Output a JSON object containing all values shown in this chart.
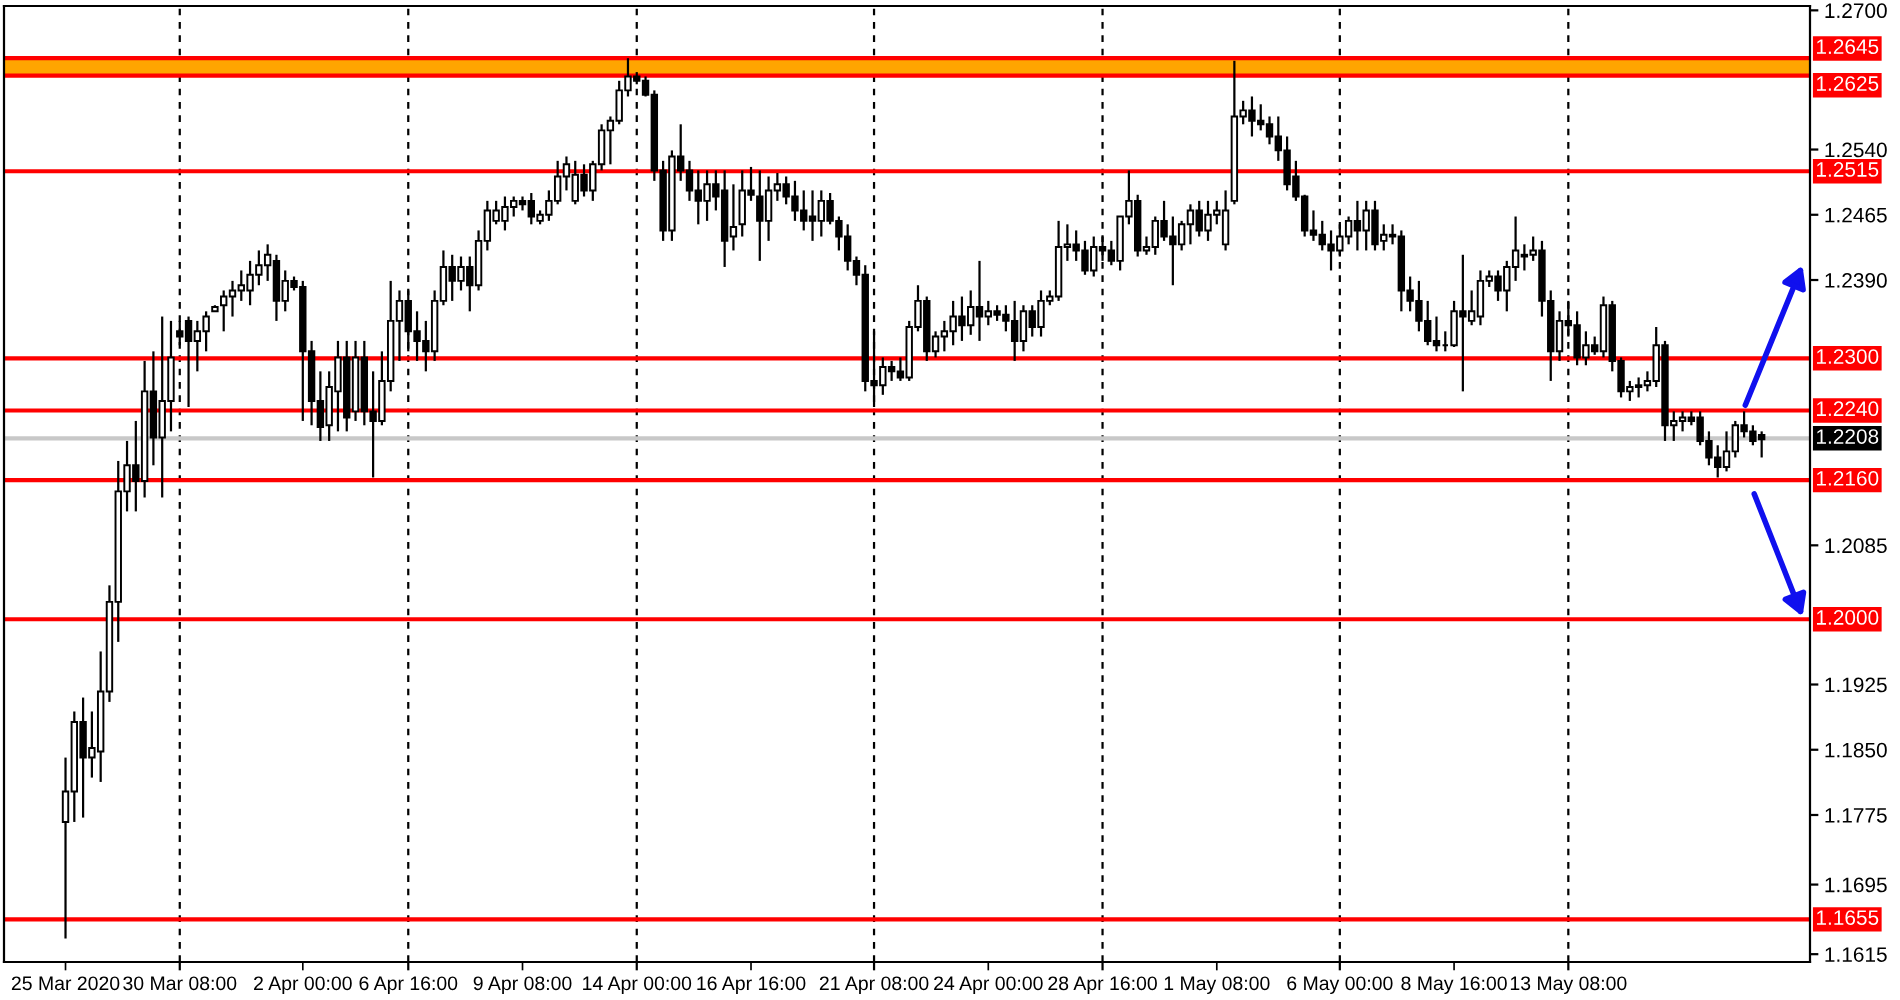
{
  "chart_data": {
    "type": "candlestick",
    "categories": [
      "25 Mar 2020",
      null,
      null,
      null,
      null,
      null,
      null,
      null,
      null,
      null,
      null,
      null,
      null,
      "30 Mar 08:00",
      null,
      null,
      null,
      null,
      null,
      null,
      null,
      null,
      null,
      null,
      null,
      null,
      null,
      "2 Apr 00:00",
      null,
      null,
      null,
      null,
      null,
      null,
      null,
      null,
      null,
      null,
      null,
      "6 Apr 16:00",
      null,
      null,
      null,
      null,
      null,
      null,
      null,
      null,
      null,
      null,
      null,
      null,
      "9 Apr 08:00",
      null,
      null,
      null,
      null,
      null,
      null,
      null,
      null,
      null,
      null,
      null,
      null,
      "14 Apr 00:00",
      null,
      null,
      null,
      null,
      null,
      null,
      null,
      null,
      null,
      null,
      null,
      null,
      "16 Apr 16:00",
      null,
      null,
      null,
      null,
      null,
      null,
      null,
      null,
      null,
      null,
      null,
      null,
      null,
      "21 Apr 08:00",
      null,
      null,
      null,
      null,
      null,
      null,
      null,
      null,
      null,
      null,
      null,
      null,
      "24 Apr 00:00",
      null,
      null,
      null,
      null,
      null,
      null,
      null,
      null,
      null,
      null,
      null,
      null,
      "28 Apr 16:00",
      null,
      null,
      null,
      null,
      null,
      null,
      null,
      null,
      null,
      null,
      null,
      null,
      "1 May 08:00",
      null,
      null,
      null,
      null,
      null,
      null,
      null,
      null,
      null,
      null,
      null,
      null,
      null,
      "6 May 00:00",
      null,
      null,
      null,
      null,
      null,
      null,
      null,
      null,
      null,
      null,
      null,
      null,
      "8 May 16:00",
      null,
      null,
      null,
      null,
      null,
      null,
      null,
      null,
      null,
      null,
      null,
      null,
      "13 May 08:00",
      null,
      null,
      null,
      null,
      null,
      null,
      null,
      null,
      null,
      null,
      null,
      null,
      null,
      null,
      null,
      null,
      null,
      null,
      null,
      null,
      null,
      null
    ],
    "ohlc": [
      [
        1.1767,
        1.1841,
        1.1633,
        1.1802
      ],
      [
        1.1802,
        1.1894,
        1.1767,
        1.1882
      ],
      [
        1.1882,
        1.191,
        1.1772,
        1.1841
      ],
      [
        1.1841,
        1.1894,
        1.1818,
        1.1852
      ],
      [
        1.1848,
        1.1963,
        1.1813,
        1.1917
      ],
      [
        1.1917,
        1.2039,
        1.1905,
        1.202
      ],
      [
        1.202,
        1.2182,
        1.1974,
        1.2147
      ],
      [
        1.2147,
        1.2205,
        1.2124,
        1.2177
      ],
      [
        1.2177,
        1.2228,
        1.2124,
        1.2159
      ],
      [
        1.2159,
        1.2297,
        1.214,
        1.2262
      ],
      [
        1.2262,
        1.2308,
        1.2177,
        1.2209
      ],
      [
        1.2209,
        1.2348,
        1.214,
        1.2251
      ],
      [
        1.2251,
        1.2343,
        1.2216,
        1.2301
      ],
      [
        1.2331,
        1.2343,
        1.2315,
        1.2325
      ],
      [
        1.2343,
        1.2348,
        1.2244,
        1.232
      ],
      [
        1.232,
        1.2343,
        1.2285,
        1.2331
      ],
      [
        1.2331,
        1.2354,
        1.2308,
        1.2348
      ],
      [
        1.2354,
        1.2361,
        1.2354,
        1.2359
      ],
      [
        1.2361,
        1.2378,
        1.2331,
        1.2371
      ],
      [
        1.2371,
        1.2389,
        1.2348,
        1.2378
      ],
      [
        1.2378,
        1.2401,
        1.2366,
        1.2384
      ],
      [
        1.2378,
        1.2412,
        1.2361,
        1.2396
      ],
      [
        1.2396,
        1.2424,
        1.2384,
        1.2407
      ],
      [
        1.2407,
        1.2431,
        1.2389,
        1.2419
      ],
      [
        1.2412,
        1.2419,
        1.2343,
        1.2366
      ],
      [
        1.2366,
        1.2401,
        1.2354,
        1.2389
      ],
      [
        1.2389,
        1.2394,
        1.2378,
        1.2382
      ],
      [
        1.2382,
        1.2389,
        1.2228,
        1.2308
      ],
      [
        1.2308,
        1.232,
        1.2223,
        1.2251
      ],
      [
        1.2251,
        1.2285,
        1.2205,
        1.2221
      ],
      [
        1.2223,
        1.2285,
        1.2205,
        1.2267
      ],
      [
        1.2262,
        1.232,
        1.2216,
        1.2301
      ],
      [
        1.2301,
        1.232,
        1.2216,
        1.2232
      ],
      [
        1.2239,
        1.232,
        1.2228,
        1.2301
      ],
      [
        1.2301,
        1.232,
        1.2223,
        1.2239
      ],
      [
        1.2239,
        1.2285,
        1.2163,
        1.2228
      ],
      [
        1.2228,
        1.2308,
        1.2223,
        1.2274
      ],
      [
        1.2274,
        1.2389,
        1.2262,
        1.2343
      ],
      [
        1.2343,
        1.2378,
        1.2297,
        1.2366
      ],
      [
        1.2366,
        1.2378,
        1.2308,
        1.2331
      ],
      [
        1.2331,
        1.2354,
        1.2297,
        1.232
      ],
      [
        1.232,
        1.2343,
        1.2285,
        1.2308
      ],
      [
        1.2308,
        1.2378,
        1.2297,
        1.2366
      ],
      [
        1.2366,
        1.2424,
        1.2361,
        1.2405
      ],
      [
        1.2405,
        1.2419,
        1.2366,
        1.2389
      ],
      [
        1.2389,
        1.2417,
        1.2378,
        1.2405
      ],
      [
        1.2405,
        1.2417,
        1.2354,
        1.2384
      ],
      [
        1.2384,
        1.2447,
        1.2378,
        1.2435
      ],
      [
        1.2435,
        1.2481,
        1.2424,
        1.247
      ],
      [
        1.2458,
        1.2481,
        1.2454,
        1.247
      ],
      [
        1.2458,
        1.2486,
        1.2447,
        1.2474
      ],
      [
        1.2474,
        1.2486,
        1.2463,
        1.2481
      ],
      [
        1.2481,
        1.2486,
        1.247,
        1.2477
      ],
      [
        1.2481,
        1.249,
        1.2454,
        1.2463
      ],
      [
        1.2458,
        1.247,
        1.2454,
        1.2465
      ],
      [
        1.2465,
        1.2493,
        1.2458,
        1.2481
      ],
      [
        1.2481,
        1.2527,
        1.2477,
        1.2509
      ],
      [
        1.2509,
        1.2532,
        1.2493,
        1.2523
      ],
      [
        1.2481,
        1.2527,
        1.2477,
        1.2511
      ],
      [
        1.2511,
        1.2523,
        1.2486,
        1.2493
      ],
      [
        1.2493,
        1.2527,
        1.2481,
        1.2523
      ],
      [
        1.2523,
        1.2569,
        1.2516,
        1.2562
      ],
      [
        1.2562,
        1.2578,
        1.2523,
        1.2573
      ],
      [
        1.2573,
        1.2619,
        1.2569,
        1.2608
      ],
      [
        1.2608,
        1.2645,
        1.2601,
        1.2624
      ],
      [
        1.2624,
        1.2629,
        1.2615,
        1.2619
      ],
      [
        1.2619,
        1.2624,
        1.2601,
        1.2603
      ],
      [
        1.2603,
        1.2608,
        1.2504,
        1.2516
      ],
      [
        1.2516,
        1.2527,
        1.2435,
        1.2447
      ],
      [
        1.2447,
        1.2539,
        1.2435,
        1.2532
      ],
      [
        1.2532,
        1.2569,
        1.2504,
        1.2516
      ],
      [
        1.2516,
        1.2527,
        1.2481,
        1.2493
      ],
      [
        1.2493,
        1.2516,
        1.2454,
        1.2481
      ],
      [
        1.2481,
        1.2516,
        1.2458,
        1.25
      ],
      [
        1.25,
        1.2516,
        1.247,
        1.2486
      ],
      [
        1.2493,
        1.2516,
        1.2405,
        1.2435
      ],
      [
        1.244,
        1.25,
        1.2424,
        1.2451
      ],
      [
        1.2454,
        1.2516,
        1.244,
        1.2493
      ],
      [
        1.2493,
        1.252,
        1.2481,
        1.2488
      ],
      [
        1.2486,
        1.2516,
        1.2412,
        1.2458
      ],
      [
        1.2458,
        1.2509,
        1.2435,
        1.2493
      ],
      [
        1.2493,
        1.2513,
        1.2481,
        1.25
      ],
      [
        1.25,
        1.2509,
        1.2477,
        1.2486
      ],
      [
        1.2486,
        1.2504,
        1.2458,
        1.247
      ],
      [
        1.247,
        1.2493,
        1.2447,
        1.2458
      ],
      [
        1.2463,
        1.2493,
        1.2435,
        1.2458
      ],
      [
        1.2458,
        1.2493,
        1.244,
        1.2481
      ],
      [
        1.2481,
        1.249,
        1.2454,
        1.2458
      ],
      [
        1.2458,
        1.2463,
        1.2424,
        1.244
      ],
      [
        1.244,
        1.2454,
        1.2401,
        1.2412
      ],
      [
        1.2412,
        1.2417,
        1.2384,
        1.2396
      ],
      [
        1.2396,
        1.2407,
        1.2262,
        1.2274
      ],
      [
        1.2274,
        1.2331,
        1.2244,
        1.2269
      ],
      [
        1.2269,
        1.2301,
        1.2258,
        1.229
      ],
      [
        1.229,
        1.2297,
        1.2274,
        1.2285
      ],
      [
        1.2285,
        1.2301,
        1.2274,
        1.2278
      ],
      [
        1.2278,
        1.2343,
        1.2274,
        1.2336
      ],
      [
        1.2336,
        1.2384,
        1.2331,
        1.2366
      ],
      [
        1.2366,
        1.2371,
        1.2297,
        1.2308
      ],
      [
        1.2308,
        1.2331,
        1.2301,
        1.2325
      ],
      [
        1.2325,
        1.2343,
        1.2308,
        1.2331
      ],
      [
        1.2331,
        1.2366,
        1.2315,
        1.2348
      ],
      [
        1.2348,
        1.2371,
        1.232,
        1.2338
      ],
      [
        1.2338,
        1.2378,
        1.2327,
        1.2359
      ],
      [
        1.2359,
        1.2412,
        1.232,
        1.2348
      ],
      [
        1.2348,
        1.2366,
        1.2338,
        1.2354
      ],
      [
        1.2354,
        1.2361,
        1.2343,
        1.235
      ],
      [
        1.235,
        1.2361,
        1.2331,
        1.2343
      ],
      [
        1.2343,
        1.2366,
        1.2297,
        1.232
      ],
      [
        1.232,
        1.2361,
        1.2308,
        1.2354
      ],
      [
        1.2354,
        1.2361,
        1.2325,
        1.2336
      ],
      [
        1.2336,
        1.2378,
        1.2325,
        1.2366
      ],
      [
        1.2366,
        1.2378,
        1.2361,
        1.2371
      ],
      [
        1.2371,
        1.2458,
        1.2366,
        1.2428
      ],
      [
        1.2428,
        1.2454,
        1.2412,
        1.2431
      ],
      [
        1.2431,
        1.2447,
        1.2412,
        1.2424
      ],
      [
        1.2424,
        1.2435,
        1.2396,
        1.2401
      ],
      [
        1.2401,
        1.244,
        1.2394,
        1.2428
      ],
      [
        1.2428,
        1.244,
        1.2412,
        1.2424
      ],
      [
        1.2424,
        1.2435,
        1.2407,
        1.2412
      ],
      [
        1.2412,
        1.2463,
        1.2401,
        1.2463
      ],
      [
        1.2463,
        1.2516,
        1.2454,
        1.2481
      ],
      [
        1.2481,
        1.2488,
        1.2417,
        1.2424
      ],
      [
        1.2424,
        1.244,
        1.2419,
        1.2428
      ],
      [
        1.2428,
        1.2463,
        1.2419,
        1.2458
      ],
      [
        1.2458,
        1.2481,
        1.2435,
        1.244
      ],
      [
        1.244,
        1.2463,
        1.2384,
        1.2431
      ],
      [
        1.2431,
        1.2458,
        1.2424,
        1.2454
      ],
      [
        1.2454,
        1.2477,
        1.2431,
        1.247
      ],
      [
        1.247,
        1.2481,
        1.244,
        1.2447
      ],
      [
        1.2447,
        1.2481,
        1.2435,
        1.2465
      ],
      [
        1.2465,
        1.2481,
        1.2454,
        1.247
      ],
      [
        1.2431,
        1.2493,
        1.2424,
        1.247
      ],
      [
        1.2481,
        1.2642,
        1.2477,
        1.2578
      ],
      [
        1.2578,
        1.2596,
        1.2569,
        1.2585
      ],
      [
        1.2585,
        1.2601,
        1.2555,
        1.2573
      ],
      [
        1.2573,
        1.2592,
        1.2562,
        1.2569
      ],
      [
        1.2569,
        1.2578,
        1.2546,
        1.2555
      ],
      [
        1.2555,
        1.2578,
        1.2527,
        1.2539
      ],
      [
        1.2539,
        1.2555,
        1.2493,
        1.25
      ],
      [
        1.2509,
        1.2527,
        1.2481,
        1.2486
      ],
      [
        1.2486,
        1.2488,
        1.244,
        1.2447
      ],
      [
        1.2447,
        1.247,
        1.2435,
        1.2442
      ],
      [
        1.2442,
        1.2458,
        1.2424,
        1.2431
      ],
      [
        1.2431,
        1.2447,
        1.2401,
        1.2424
      ],
      [
        1.2424,
        1.2454,
        1.2417,
        1.244
      ],
      [
        1.244,
        1.2463,
        1.2431,
        1.2458
      ],
      [
        1.2458,
        1.2481,
        1.2424,
        1.2447
      ],
      [
        1.2447,
        1.2481,
        1.2424,
        1.247
      ],
      [
        1.247,
        1.2481,
        1.2424,
        1.2431
      ],
      [
        1.2435,
        1.2454,
        1.2424,
        1.2442
      ],
      [
        1.2442,
        1.2454,
        1.2431,
        1.244
      ],
      [
        1.244,
        1.2447,
        1.2354,
        1.2378
      ],
      [
        1.2378,
        1.2394,
        1.2354,
        1.2366
      ],
      [
        1.2366,
        1.2389,
        1.2331,
        1.2343
      ],
      [
        1.2343,
        1.2366,
        1.2315,
        1.232
      ],
      [
        1.232,
        1.2348,
        1.2308,
        1.2315
      ],
      [
        1.2315,
        1.2331,
        1.2308,
        1.2315
      ],
      [
        1.2315,
        1.2366,
        1.2313,
        1.2354
      ],
      [
        1.2354,
        1.2419,
        1.2262,
        1.2348
      ],
      [
        1.2343,
        1.2378,
        1.2338,
        1.2354
      ],
      [
        1.2348,
        1.2401,
        1.2338,
        1.2389
      ],
      [
        1.2389,
        1.2401,
        1.2382,
        1.2394
      ],
      [
        1.2394,
        1.2401,
        1.2366,
        1.2378
      ],
      [
        1.2378,
        1.2412,
        1.2354,
        1.2405
      ],
      [
        1.2405,
        1.2463,
        1.2389,
        1.2424
      ],
      [
        1.2417,
        1.2431,
        1.2401,
        1.2419
      ],
      [
        1.2419,
        1.244,
        1.2412,
        1.2424
      ],
      [
        1.2424,
        1.2435,
        1.2348,
        1.2366
      ],
      [
        1.2366,
        1.2378,
        1.2274,
        1.2308
      ],
      [
        1.2308,
        1.2354,
        1.2297,
        1.2343
      ],
      [
        1.2343,
        1.2366,
        1.2325,
        1.2338
      ],
      [
        1.2338,
        1.2354,
        1.2292,
        1.2301
      ],
      [
        1.2301,
        1.2331,
        1.2292,
        1.2315
      ],
      [
        1.2315,
        1.2325,
        1.2304,
        1.2308
      ],
      [
        1.2308,
        1.2371,
        1.2301,
        1.2361
      ],
      [
        1.2361,
        1.2366,
        1.2285,
        1.2297
      ],
      [
        1.2297,
        1.2301,
        1.2255,
        1.2262
      ],
      [
        1.2262,
        1.2274,
        1.2251,
        1.2267
      ],
      [
        1.2267,
        1.2278,
        1.2255,
        1.2269
      ],
      [
        1.2269,
        1.2285,
        1.2262,
        1.2274
      ],
      [
        1.2274,
        1.2336,
        1.2267,
        1.2315
      ],
      [
        1.2315,
        1.232,
        1.2205,
        1.2223
      ],
      [
        1.2223,
        1.2239,
        1.2205,
        1.2228
      ],
      [
        1.2228,
        1.2239,
        1.2216,
        1.2232
      ],
      [
        1.2232,
        1.2239,
        1.2223,
        1.2228
      ],
      [
        1.2232,
        1.2239,
        1.22,
        1.2205
      ],
      [
        1.2205,
        1.2216,
        1.2177,
        1.2186
      ],
      [
        1.2186,
        1.22,
        1.2163,
        1.2175
      ],
      [
        1.2175,
        1.2216,
        1.217,
        1.2193
      ],
      [
        1.2193,
        1.2228,
        1.2186,
        1.2223
      ],
      [
        1.2223,
        1.2239,
        1.2209,
        1.2216
      ],
      [
        1.2216,
        1.2223,
        1.22,
        1.2205
      ],
      [
        1.2212,
        1.2216,
        1.2186,
        1.2207
      ]
    ],
    "ylim": [
      1.1606,
      1.2705
    ],
    "yticks": [
      {
        "value": 1.27,
        "label": "1.2700"
      },
      {
        "value": 1.254,
        "label": "1.2540"
      },
      {
        "value": 1.2465,
        "label": "1.2465"
      },
      {
        "value": 1.239,
        "label": "1.2390"
      },
      {
        "value": 1.2085,
        "label": "1.2085"
      },
      {
        "value": 1.1925,
        "label": "1.1925"
      },
      {
        "value": 1.185,
        "label": "1.1850"
      },
      {
        "value": 1.1775,
        "label": "1.1775"
      },
      {
        "value": 1.1695,
        "label": "1.1695"
      },
      {
        "value": 1.1615,
        "label": "1.1615"
      }
    ],
    "bands": [
      {
        "axis": "y",
        "from": 1.2625,
        "to": 1.2645,
        "color": "#ffa500"
      }
    ],
    "ref_lines": [
      {
        "axis": "y",
        "value": 1.2645,
        "label": "1.2645",
        "color": "#ff0000"
      },
      {
        "axis": "y",
        "value": 1.2625,
        "label": "1.2625",
        "color": "#ff0000"
      },
      {
        "axis": "y",
        "value": 1.2515,
        "label": "1.2515",
        "color": "#ff0000"
      },
      {
        "axis": "y",
        "value": 1.23,
        "label": "1.2300",
        "color": "#ff0000"
      },
      {
        "axis": "y",
        "value": 1.224,
        "label": "1.2240",
        "color": "#ff0000"
      },
      {
        "axis": "y",
        "value": 1.2208,
        "label": "1.2208",
        "color": "#c8c8c8"
      },
      {
        "axis": "y",
        "value": 1.216,
        "label": "1.2160",
        "color": "#ff0000"
      },
      {
        "axis": "y",
        "value": 1.2,
        "label": "1.2000",
        "color": "#ff0000"
      },
      {
        "axis": "y",
        "value": 1.1655,
        "label": "1.1655",
        "color": "#ff0000"
      }
    ],
    "grid": "x",
    "legend": false
  }
}
